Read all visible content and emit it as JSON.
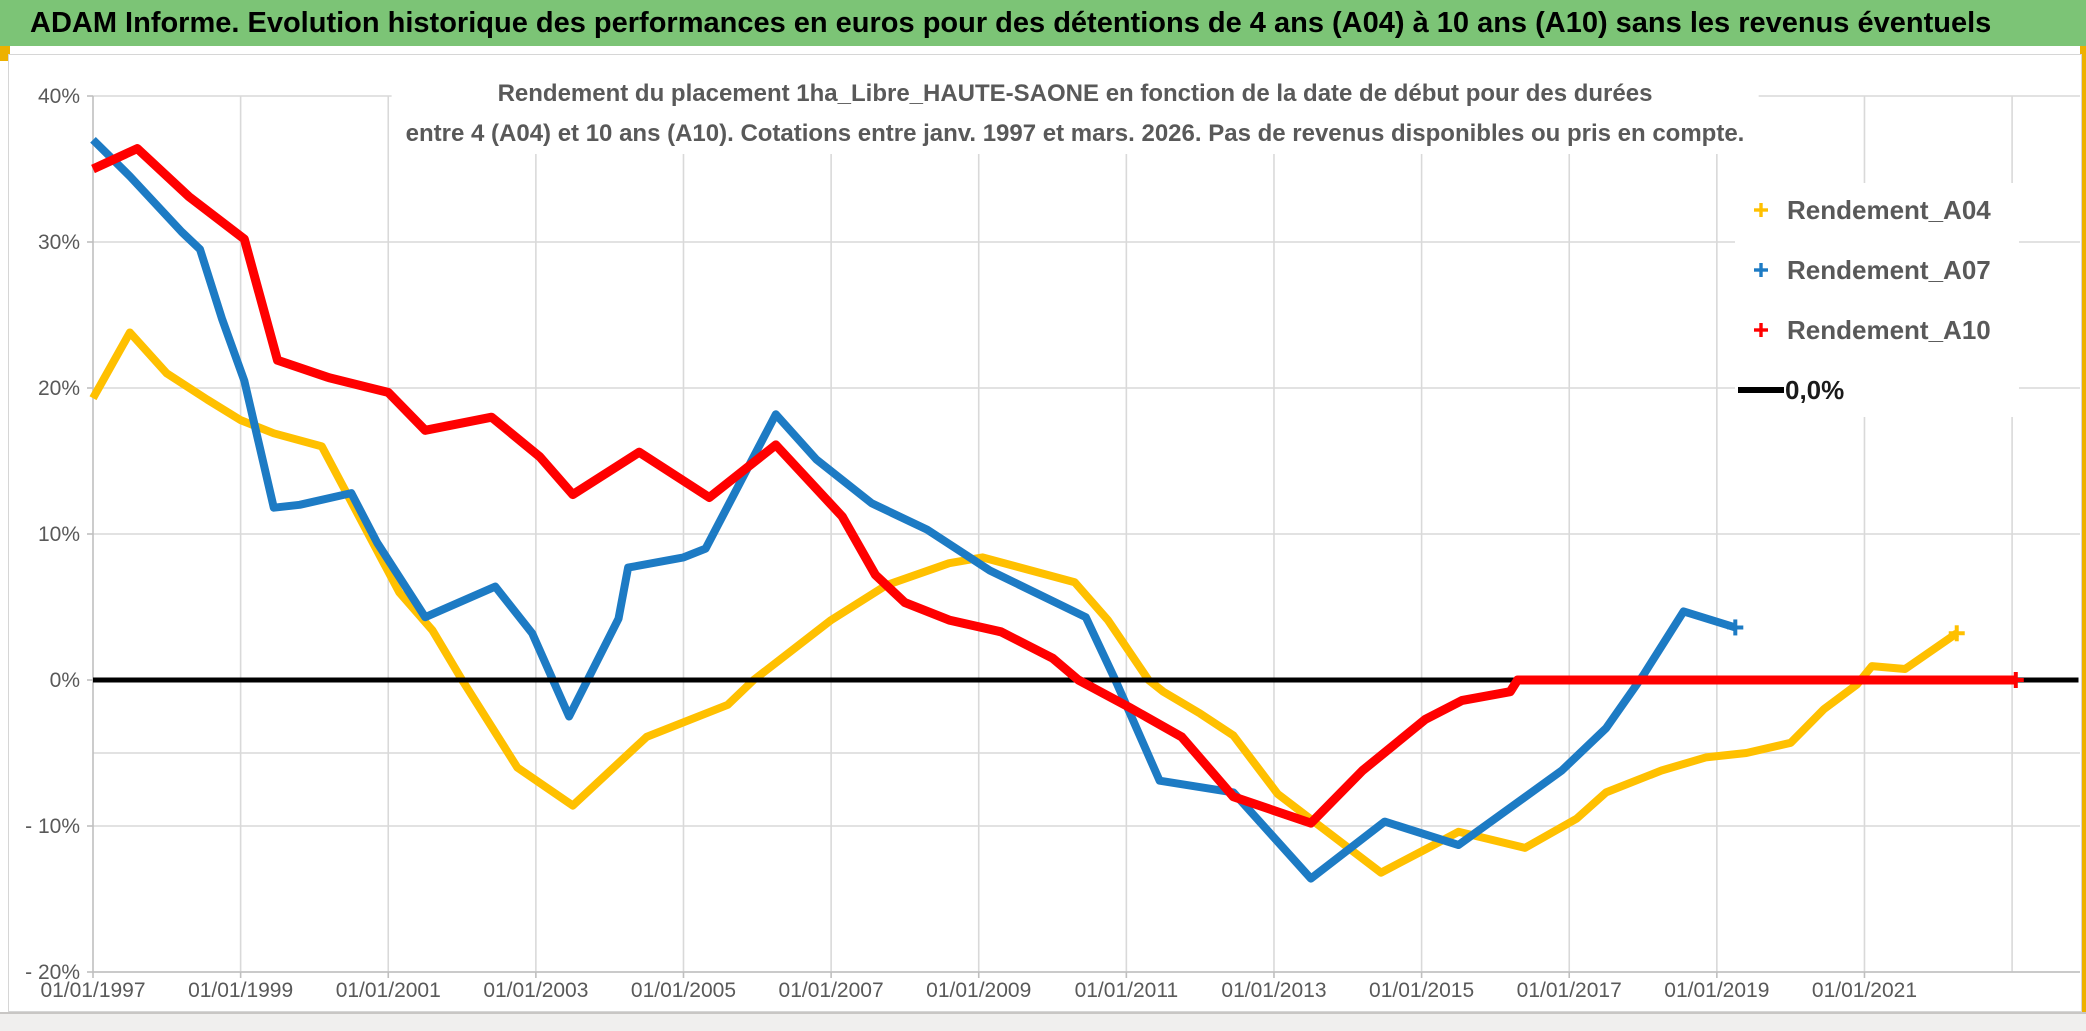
{
  "banner": {
    "title": "ADAM Informe. Evolution historique des performances en euros pour des détentions de 4 ans (A04) à 10 ans (A10) sans les revenus éventuels"
  },
  "chart": {
    "title_line1": "Rendement du placement 1ha_Libre_HAUTE-SAONE en fonction de la date de début pour des durées",
    "title_line2": "entre 4 (A04) et 10 ans (A10). Cotations entre janv. 1997 et mars. 2026. Pas de revenus disponibles ou pris en compte.",
    "legend": [
      {
        "label": "Rendement_A04",
        "color": "#FFC000",
        "marker": "plus"
      },
      {
        "label": "Rendement_A07",
        "color": "#1D7BC4",
        "marker": "plus"
      },
      {
        "label": "Rendement_A10",
        "color": "#FF0000",
        "marker": "plus"
      },
      {
        "label": "0,0%",
        "color": "#000000",
        "marker": "line"
      }
    ],
    "colors": {
      "banner_green": "#7CC476",
      "edge_orange": "#EDB100",
      "text_gray": "#595959",
      "gridline": "#D9D9D9",
      "axis_line": "#BFBFBF"
    }
  },
  "chart_data": {
    "type": "line",
    "title": "Rendement du placement 1ha_Libre_HAUTE-SAONE en fonction de la date de début pour des durées entre 4 (A04) et 10 ans (A10). Cotations entre janv. 1997 et mars. 2026. Pas de revenus disponibles ou pris en compte.",
    "xlabel": "",
    "ylabel": "",
    "legend_position": "right",
    "grid": true,
    "axis": {
      "x_min": 1997.0,
      "x_max": 2023.92,
      "y_min": -20,
      "y_max": 40
    },
    "x_tick_years": [
      1997,
      1999,
      2001,
      2003,
      2005,
      2007,
      2009,
      2011,
      2013,
      2015,
      2017,
      2019,
      2021
    ],
    "x_tick_labels": [
      "01/01/1997",
      "01/01/1999",
      "01/01/2001",
      "01/01/2003",
      "01/01/2005",
      "01/01/2007",
      "01/01/2009",
      "01/01/2011",
      "01/01/2013",
      "01/01/2015",
      "01/01/2017",
      "01/01/2019",
      "01/01/2021"
    ],
    "x_gridline_years": [
      1999,
      2001,
      2003,
      2005,
      2007,
      2009,
      2011,
      2013,
      2015,
      2017,
      2019,
      2021,
      2023
    ],
    "y_tick_values": [
      40,
      30,
      20,
      10,
      0,
      -10,
      -20
    ],
    "y_tick_labels": [
      "40%",
      "30%",
      "20%",
      "10%",
      "0%",
      "- 10%",
      "- 20%"
    ],
    "y_gridline_values": [
      40,
      30,
      20,
      10,
      -5,
      -10,
      -20
    ],
    "draw_order": [
      "Rendement_A04",
      "Rendement_A07",
      "0,0%",
      "Rendement_A10"
    ],
    "series": [
      {
        "name": "Rendement_A04",
        "color": "#FFC000",
        "marker": "plus",
        "end_marker": [
          2022.25,
          3.2
        ],
        "points": [
          [
            1997.0,
            19.3
          ],
          [
            1997.5,
            23.8
          ],
          [
            1998.0,
            21.0
          ],
          [
            1998.55,
            19.2
          ],
          [
            1999.0,
            17.8
          ],
          [
            1999.45,
            16.9
          ],
          [
            2000.1,
            16.0
          ],
          [
            2000.5,
            12.2
          ],
          [
            2001.15,
            6.0
          ],
          [
            2001.6,
            3.4
          ],
          [
            2002.0,
            0.0
          ],
          [
            2002.75,
            -6.0
          ],
          [
            2003.5,
            -8.6
          ],
          [
            2004.5,
            -3.9
          ],
          [
            2005.6,
            -1.7
          ],
          [
            2005.95,
            0.0
          ],
          [
            2007.0,
            4.1
          ],
          [
            2007.75,
            6.5
          ],
          [
            2008.6,
            8.0
          ],
          [
            2009.05,
            8.4
          ],
          [
            2010.3,
            6.7
          ],
          [
            2010.75,
            4.1
          ],
          [
            2011.3,
            0.0
          ],
          [
            2011.5,
            -0.8
          ],
          [
            2012.0,
            -2.3
          ],
          [
            2012.45,
            -3.8
          ],
          [
            2013.05,
            -7.8
          ],
          [
            2014.45,
            -13.2
          ],
          [
            2015.05,
            -11.6
          ],
          [
            2015.5,
            -10.4
          ],
          [
            2016.4,
            -11.5
          ],
          [
            2017.1,
            -9.5
          ],
          [
            2017.5,
            -7.7
          ],
          [
            2018.25,
            -6.2
          ],
          [
            2018.85,
            -5.3
          ],
          [
            2019.4,
            -5.0
          ],
          [
            2020.0,
            -4.3
          ],
          [
            2020.45,
            -2.0
          ],
          [
            2020.9,
            -0.3
          ],
          [
            2021.1,
            0.95
          ],
          [
            2021.55,
            0.75
          ],
          [
            2022.25,
            3.2
          ]
        ]
      },
      {
        "name": "Rendement_A07",
        "color": "#1D7BC4",
        "marker": "plus",
        "end_marker": [
          2019.25,
          3.6
        ],
        "points": [
          [
            1997.0,
            37.0
          ],
          [
            1997.5,
            34.5
          ],
          [
            1998.2,
            30.7
          ],
          [
            1998.45,
            29.5
          ],
          [
            1998.75,
            24.7
          ],
          [
            1999.05,
            20.5
          ],
          [
            1999.45,
            11.8
          ],
          [
            1999.8,
            12.0
          ],
          [
            2000.5,
            12.8
          ],
          [
            2000.85,
            9.4
          ],
          [
            2001.5,
            4.3
          ],
          [
            2002.45,
            6.4
          ],
          [
            2002.95,
            3.2
          ],
          [
            2003.45,
            -2.5
          ],
          [
            2004.12,
            4.2
          ],
          [
            2004.25,
            7.7
          ],
          [
            2005.0,
            8.4
          ],
          [
            2005.3,
            9.0
          ],
          [
            2006.25,
            18.2
          ],
          [
            2006.8,
            15.1
          ],
          [
            2007.55,
            12.1
          ],
          [
            2008.3,
            10.3
          ],
          [
            2009.15,
            7.5
          ],
          [
            2010.45,
            4.3
          ],
          [
            2010.85,
            0.0
          ],
          [
            2011.45,
            -6.9
          ],
          [
            2012.45,
            -7.7
          ],
          [
            2013.5,
            -13.6
          ],
          [
            2014.5,
            -9.7
          ],
          [
            2015.5,
            -11.3
          ],
          [
            2016.9,
            -6.2
          ],
          [
            2017.5,
            -3.3
          ],
          [
            2018.0,
            0.3
          ],
          [
            2018.55,
            4.7
          ],
          [
            2019.25,
            3.6
          ]
        ]
      },
      {
        "name": "Rendement_A10",
        "color": "#FF0000",
        "marker": "plus",
        "end_marker": [
          2023.05,
          0.0
        ],
        "points": [
          [
            1997.0,
            35.0
          ],
          [
            1997.6,
            36.4
          ],
          [
            1998.3,
            33.1
          ],
          [
            1999.05,
            30.2
          ],
          [
            1999.5,
            21.9
          ],
          [
            2000.2,
            20.7
          ],
          [
            2001.0,
            19.7
          ],
          [
            2001.5,
            17.1
          ],
          [
            2002.4,
            18.0
          ],
          [
            2003.05,
            15.3
          ],
          [
            2003.5,
            12.7
          ],
          [
            2004.4,
            15.6
          ],
          [
            2005.35,
            12.5
          ],
          [
            2006.25,
            16.1
          ],
          [
            2007.15,
            11.2
          ],
          [
            2007.6,
            7.2
          ],
          [
            2008.0,
            5.3
          ],
          [
            2008.6,
            4.1
          ],
          [
            2009.3,
            3.3
          ],
          [
            2010.0,
            1.5
          ],
          [
            2010.35,
            0.0
          ],
          [
            2011.05,
            -1.9
          ],
          [
            2011.75,
            -3.9
          ],
          [
            2012.45,
            -8.0
          ],
          [
            2013.5,
            -9.8
          ],
          [
            2014.2,
            -6.2
          ],
          [
            2015.05,
            -2.7
          ],
          [
            2015.55,
            -1.4
          ],
          [
            2016.2,
            -0.8
          ],
          [
            2016.3,
            0.0
          ],
          [
            2023.05,
            0.0
          ]
        ]
      },
      {
        "name": "0,0%",
        "color": "#000000",
        "marker": "line",
        "points": [
          [
            1997.0,
            0.0
          ],
          [
            2023.9,
            0.0
          ]
        ]
      }
    ]
  }
}
